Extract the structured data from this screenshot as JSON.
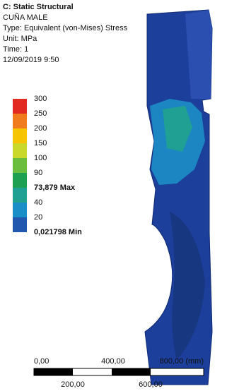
{
  "header": {
    "title": "C: Static Structural",
    "lines": [
      "CUÑA MALE",
      "Type: Equivalent (von-Mises) Stress",
      "Unit: MPa",
      "Time: 1",
      "12/09/2019 9:50"
    ]
  },
  "legend": {
    "labels": [
      "300",
      "250",
      "200",
      "150",
      "100",
      "90",
      "73,879 Max",
      "40",
      "20",
      "0,021798 Min"
    ],
    "colors": [
      "#e22a22",
      "#ef7b1e",
      "#f6c400",
      "#c9d82a",
      "#6bbd3e",
      "#1f9f52",
      "#1fa092",
      "#1a8ec6",
      "#2257b0"
    ]
  },
  "scale_bar": {
    "top_labels": [
      "0,00",
      "400,00",
      "800,00 (mm)"
    ],
    "bottom_labels": [
      "200,00",
      "600,00"
    ]
  }
}
